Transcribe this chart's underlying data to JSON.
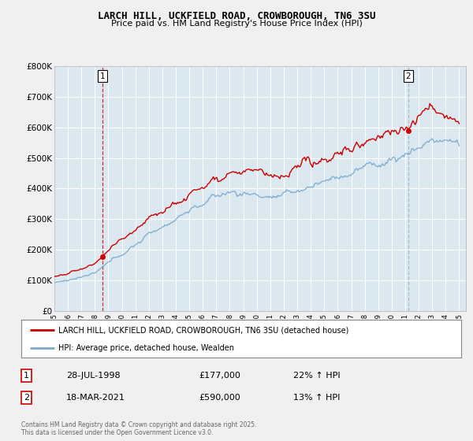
{
  "title_line1": "LARCH HILL, UCKFIELD ROAD, CROWBOROUGH, TN6 3SU",
  "title_line2": "Price paid vs. HM Land Registry's House Price Index (HPI)",
  "legend_label1": "LARCH HILL, UCKFIELD ROAD, CROWBOROUGH, TN6 3SU (detached house)",
  "legend_label2": "HPI: Average price, detached house, Wealden",
  "annotation1_date": "28-JUL-1998",
  "annotation1_price": "£177,000",
  "annotation1_hpi": "22% ↑ HPI",
  "annotation2_date": "18-MAR-2021",
  "annotation2_price": "£590,000",
  "annotation2_hpi": "13% ↑ HPI",
  "copyright": "Contains HM Land Registry data © Crown copyright and database right 2025.\nThis data is licensed under the Open Government Licence v3.0.",
  "red_color": "#cc0000",
  "blue_color": "#7aaacc",
  "vline1_color": "#cc0000",
  "vline2_color": "#8ab0cc",
  "background_color": "#f0f0f0",
  "plot_background": "#dce8f0",
  "ylim": [
    0,
    800000
  ],
  "yticks": [
    0,
    100000,
    200000,
    300000,
    400000,
    500000,
    600000,
    700000,
    800000
  ],
  "ytick_labels": [
    "£0",
    "£100K",
    "£200K",
    "£300K",
    "£400K",
    "£500K",
    "£600K",
    "£700K",
    "£800K"
  ],
  "sale1_year": 1998.57,
  "sale1_price": 177000,
  "sale2_year": 2021.22,
  "sale2_price": 590000
}
